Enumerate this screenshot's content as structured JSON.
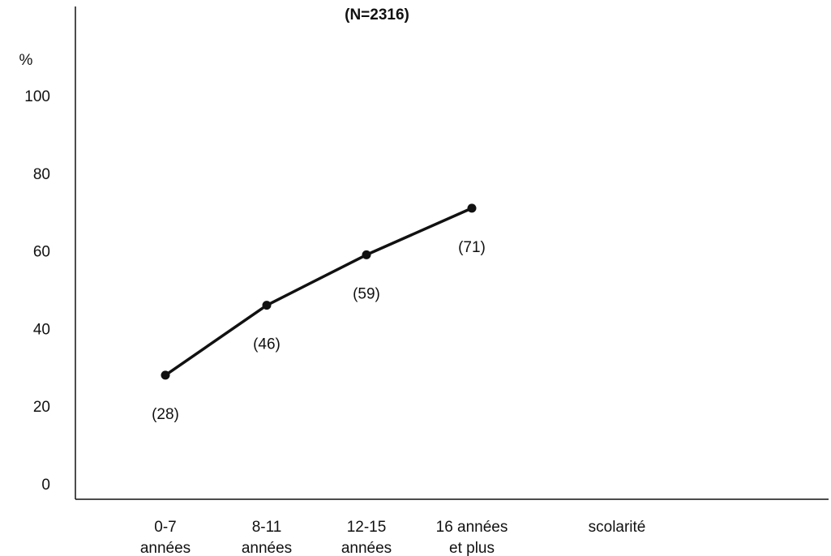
{
  "chart_data": {
    "type": "line",
    "title": "(N=2316)",
    "ylabel": "%",
    "xlabel": "scolarité",
    "categories": [
      [
        "0-7",
        "années"
      ],
      [
        "8-11",
        "années"
      ],
      [
        "12-15",
        "années"
      ],
      [
        "16 années",
        "et plus"
      ]
    ],
    "series": [
      {
        "values": [
          28,
          46,
          59,
          71
        ],
        "labels": [
          "(28)",
          "(46)",
          "(59)",
          "(71)"
        ]
      }
    ],
    "yticks": [
      "0",
      "20",
      "40",
      "60",
      "80",
      "100"
    ],
    "ylim": [
      0,
      100
    ],
    "grid": false,
    "legend": "none",
    "colors": {
      "line": "#111111",
      "text": "#111111",
      "background": "#ffffff"
    }
  }
}
